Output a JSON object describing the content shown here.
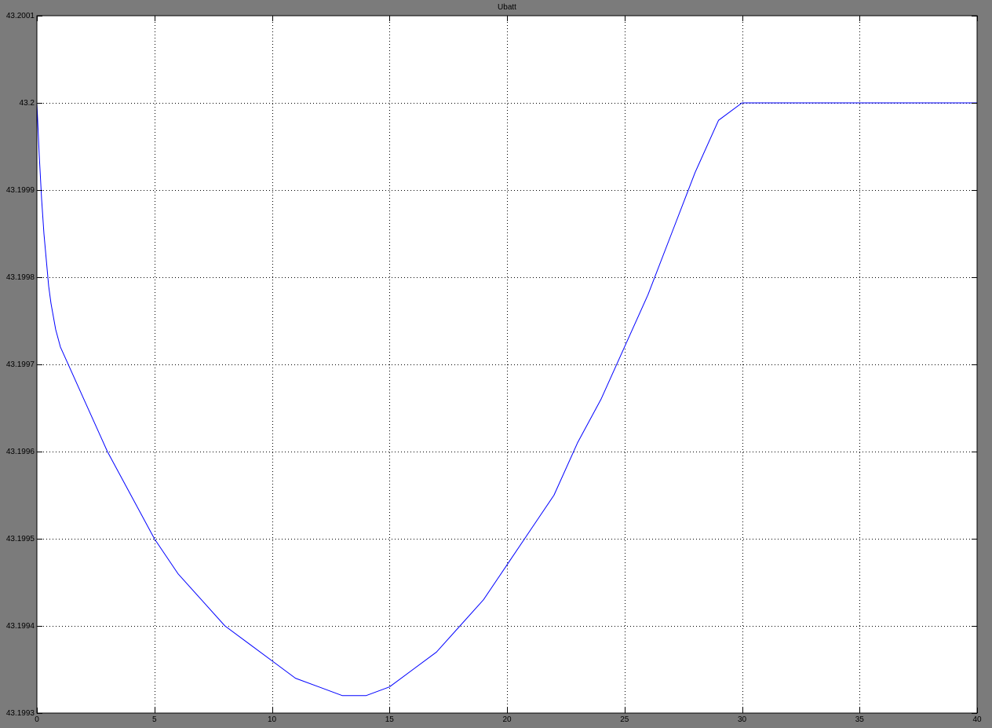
{
  "window": {
    "background": "#7b7b7b"
  },
  "chart_data": {
    "type": "line",
    "title": "Ubatt",
    "xlabel": "",
    "ylabel": "",
    "xlim": [
      0,
      40
    ],
    "ylim": [
      43.1993,
      43.2001
    ],
    "grid": true,
    "xticks": [
      0,
      5,
      10,
      15,
      20,
      25,
      30,
      35,
      40
    ],
    "xtick_labels": [
      "0",
      "5",
      "10",
      "15",
      "20",
      "25",
      "30",
      "35",
      "40"
    ],
    "yticks": [
      43.1993,
      43.1994,
      43.1995,
      43.1996,
      43.1997,
      43.1998,
      43.1999,
      43.2,
      43.2001
    ],
    "ytick_labels": [
      "43.1993",
      "43.1994",
      "43.1995",
      "43.1996",
      "43.1997",
      "43.1998",
      "43.1999",
      "43.2",
      "43.2001"
    ],
    "colors": {
      "axes_bg": "#ffffff",
      "line": "#0000ff",
      "grid": "#000000",
      "frame": "#000000"
    },
    "series": [
      {
        "name": "Ubatt",
        "x": [
          0,
          0.05,
          0.1,
          0.2,
          0.3,
          0.4,
          0.5,
          0.6,
          0.8,
          1.0,
          1.5,
          2,
          2.5,
          3,
          4,
          5,
          6,
          7,
          8,
          9,
          10,
          11,
          12,
          13,
          13.5,
          14,
          15,
          16,
          17,
          18,
          19,
          20,
          21,
          22,
          23,
          24,
          25,
          26,
          27,
          28,
          29,
          30,
          30.1,
          31,
          32,
          35,
          40
        ],
        "y": [
          43.2,
          43.19997,
          43.19994,
          43.19989,
          43.19985,
          43.19982,
          43.19979,
          43.19977,
          43.19974,
          43.19972,
          43.19969,
          43.19966,
          43.19963,
          43.1996,
          43.19955,
          43.1995,
          43.19946,
          43.19943,
          43.1994,
          43.19938,
          43.19936,
          43.19934,
          43.19933,
          43.19932,
          43.19932,
          43.19932,
          43.19933,
          43.19935,
          43.19937,
          43.1994,
          43.19943,
          43.19947,
          43.19951,
          43.19955,
          43.19961,
          43.19966,
          43.19972,
          43.19978,
          43.19985,
          43.19992,
          43.19998,
          43.2,
          43.2,
          43.2,
          43.2,
          43.2,
          43.2
        ]
      }
    ]
  }
}
